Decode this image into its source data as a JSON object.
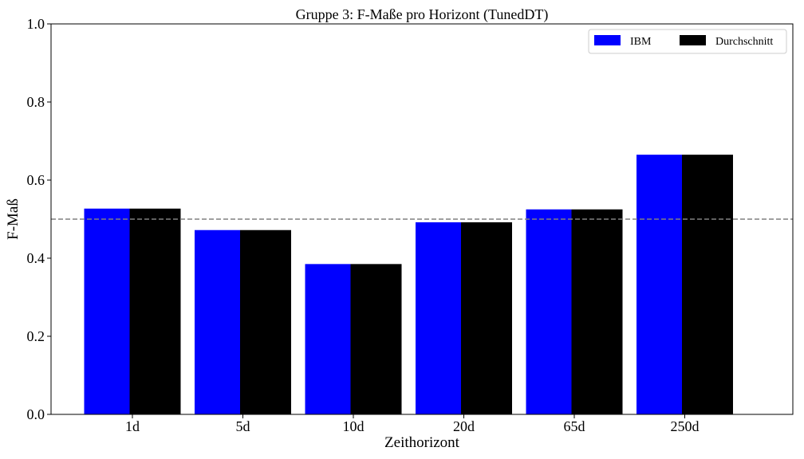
{
  "chart_data": {
    "type": "bar",
    "title": "Gruppe 3: F-Maße pro Horizont (TunedDT)",
    "xlabel": "Zeithorizont",
    "ylabel": "F-Maß",
    "categories": [
      "1d",
      "5d",
      "10d",
      "20d",
      "65d",
      "250d"
    ],
    "series": [
      {
        "name": "IBM",
        "color": "#0000ff",
        "values": [
          0.527,
          0.472,
          0.385,
          0.492,
          0.525,
          0.665
        ]
      },
      {
        "name": "Durchschnitt",
        "color": "#000000",
        "values": [
          0.527,
          0.472,
          0.385,
          0.492,
          0.525,
          0.665
        ]
      }
    ],
    "ylim": [
      0,
      1.0
    ],
    "yticks": [
      "0.0",
      "0.2",
      "0.4",
      "0.6",
      "0.8",
      "1.0"
    ],
    "reference_line": {
      "value": 0.5,
      "style": "dashed",
      "color": "#808080"
    },
    "legend": {
      "placement": "top-right"
    },
    "grid": false
  }
}
